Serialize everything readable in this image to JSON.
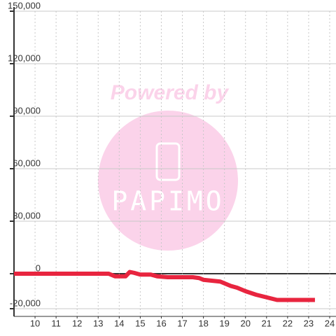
{
  "chart_data": {
    "type": "line",
    "x": [
      9,
      13.5,
      13.8,
      14.3,
      14.5,
      14.7,
      15,
      15.5,
      15.8,
      16.3,
      17.5,
      17.8,
      18,
      18.8,
      19.3,
      19.6,
      20,
      20.5,
      21,
      21.5,
      22,
      23.3
    ],
    "series": [
      {
        "color": "#e8253f",
        "values": [
          0,
          0,
          -1500,
          -1500,
          1000,
          500,
          -500,
          -500,
          -1500,
          -2000,
          -2000,
          -2500,
          -3500,
          -4500,
          -7000,
          -8000,
          -10000,
          -12000,
          -13500,
          -15000,
          -15000,
          -15000
        ]
      }
    ],
    "xlim": [
      9,
      24.3
    ],
    "xticks": [
      10,
      11,
      12,
      13,
      14,
      15,
      16,
      17,
      18,
      19,
      20,
      21,
      22,
      23,
      24
    ],
    "ylim": [
      -24400,
      150000
    ],
    "yticks": [
      {
        "value": -20000,
        "label": "-20,000"
      },
      0,
      {
        "value": 30000,
        "label": "30,000"
      },
      {
        "value": 60000,
        "label": "60,000"
      },
      {
        "value": 90000,
        "label": "90,000"
      },
      {
        "value": 120000,
        "label": "120,000"
      },
      {
        "value": 150000,
        "label": "150,000"
      }
    ],
    "grid": true
  },
  "watermark": {
    "line1": "Powered by",
    "line2": "PAPIMO"
  }
}
